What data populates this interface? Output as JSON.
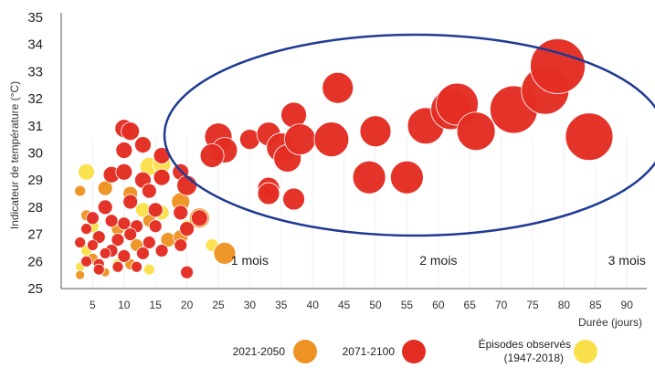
{
  "chart_data": {
    "type": "scatter",
    "xlabel": "Durée (jours)",
    "ylabel": "Indicateur de température (°C)",
    "xlim": [
      0,
      92
    ],
    "ylim": [
      25,
      35
    ],
    "xticks": [
      5,
      10,
      15,
      20,
      25,
      30,
      35,
      40,
      45,
      50,
      55,
      60,
      65,
      70,
      75,
      80,
      85,
      90
    ],
    "yticks": [
      25,
      26,
      27,
      28,
      29,
      30,
      31,
      32,
      33,
      34,
      35
    ],
    "month_markers": [
      {
        "label": "1 mois",
        "x": 30
      },
      {
        "label": "2 mois",
        "x": 60
      },
      {
        "label": "3 mois",
        "x": 90
      }
    ],
    "highlight": "ellipse",
    "legend_placement": "bottom",
    "series": [
      {
        "name": "Épisodes observés (1947-2018)",
        "color": "#f9e04a",
        "points": [
          {
            "x": 4,
            "y": 29.3,
            "r": 9
          },
          {
            "x": 14,
            "y": 29.5,
            "r": 10
          },
          {
            "x": 16,
            "y": 29.6,
            "r": 10
          },
          {
            "x": 16,
            "y": 27.8,
            "r": 8
          },
          {
            "x": 13,
            "y": 27.9,
            "r": 8
          },
          {
            "x": 5,
            "y": 27.3,
            "r": 7
          },
          {
            "x": 6,
            "y": 26.9,
            "r": 6
          },
          {
            "x": 4,
            "y": 26.4,
            "r": 6
          },
          {
            "x": 9,
            "y": 25.9,
            "r": 6
          },
          {
            "x": 14,
            "y": 25.7,
            "r": 6
          },
          {
            "x": 24,
            "y": 26.6,
            "r": 7
          },
          {
            "x": 20,
            "y": 27.3,
            "r": 7
          },
          {
            "x": 3,
            "y": 25.8,
            "r": 5
          }
        ]
      },
      {
        "name": "2021-2050",
        "color": "#ee9323",
        "points": [
          {
            "x": 3,
            "y": 28.6,
            "r": 6
          },
          {
            "x": 7,
            "y": 28.7,
            "r": 8
          },
          {
            "x": 11,
            "y": 28.5,
            "r": 8
          },
          {
            "x": 16,
            "y": 29.1,
            "r": 9
          },
          {
            "x": 19,
            "y": 28.2,
            "r": 10
          },
          {
            "x": 22,
            "y": 27.6,
            "r": 11
          },
          {
            "x": 26,
            "y": 26.3,
            "r": 12
          },
          {
            "x": 4,
            "y": 27.7,
            "r": 6
          },
          {
            "x": 9,
            "y": 27.2,
            "r": 7
          },
          {
            "x": 12,
            "y": 26.6,
            "r": 7
          },
          {
            "x": 17,
            "y": 26.8,
            "r": 8
          },
          {
            "x": 5,
            "y": 26.1,
            "r": 6
          },
          {
            "x": 7,
            "y": 25.6,
            "r": 5
          },
          {
            "x": 3,
            "y": 25.5,
            "r": 5
          },
          {
            "x": 11,
            "y": 25.9,
            "r": 6
          },
          {
            "x": 19,
            "y": 26.9,
            "r": 8
          },
          {
            "x": 14,
            "y": 27.5,
            "r": 7
          }
        ]
      },
      {
        "name": "2071-2100",
        "color": "#e32d23",
        "points": [
          {
            "x": 10,
            "y": 30.9,
            "r": 10
          },
          {
            "x": 11,
            "y": 30.8,
            "r": 10
          },
          {
            "x": 10,
            "y": 30.1,
            "r": 9
          },
          {
            "x": 13,
            "y": 30.3,
            "r": 9
          },
          {
            "x": 8,
            "y": 29.2,
            "r": 9
          },
          {
            "x": 10,
            "y": 29.3,
            "r": 9
          },
          {
            "x": 13,
            "y": 29.0,
            "r": 9
          },
          {
            "x": 16,
            "y": 29.1,
            "r": 9
          },
          {
            "x": 19,
            "y": 29.3,
            "r": 9
          },
          {
            "x": 20,
            "y": 28.8,
            "r": 11
          },
          {
            "x": 16,
            "y": 29.9,
            "r": 9
          },
          {
            "x": 14,
            "y": 28.6,
            "r": 8
          },
          {
            "x": 7,
            "y": 28.0,
            "r": 8
          },
          {
            "x": 11,
            "y": 28.2,
            "r": 8
          },
          {
            "x": 15,
            "y": 27.9,
            "r": 8
          },
          {
            "x": 19,
            "y": 27.8,
            "r": 8
          },
          {
            "x": 20,
            "y": 27.2,
            "r": 8
          },
          {
            "x": 22,
            "y": 27.6,
            "r": 9
          },
          {
            "x": 5,
            "y": 27.6,
            "r": 7
          },
          {
            "x": 8,
            "y": 27.5,
            "r": 7
          },
          {
            "x": 10,
            "y": 27.4,
            "r": 7
          },
          {
            "x": 12,
            "y": 27.3,
            "r": 7
          },
          {
            "x": 15,
            "y": 27.3,
            "r": 7
          },
          {
            "x": 4,
            "y": 27.2,
            "r": 6
          },
          {
            "x": 6,
            "y": 26.9,
            "r": 7
          },
          {
            "x": 9,
            "y": 26.8,
            "r": 7
          },
          {
            "x": 11,
            "y": 27.0,
            "r": 7
          },
          {
            "x": 14,
            "y": 26.7,
            "r": 7
          },
          {
            "x": 5,
            "y": 26.6,
            "r": 6
          },
          {
            "x": 8,
            "y": 26.4,
            "r": 7
          },
          {
            "x": 10,
            "y": 26.2,
            "r": 7
          },
          {
            "x": 13,
            "y": 26.3,
            "r": 7
          },
          {
            "x": 16,
            "y": 26.4,
            "r": 7
          },
          {
            "x": 19,
            "y": 26.6,
            "r": 7
          },
          {
            "x": 4,
            "y": 26.0,
            "r": 6
          },
          {
            "x": 6,
            "y": 25.9,
            "r": 6
          },
          {
            "x": 9,
            "y": 25.8,
            "r": 6
          },
          {
            "x": 12,
            "y": 25.8,
            "r": 6
          },
          {
            "x": 7,
            "y": 26.3,
            "r": 6
          },
          {
            "x": 3,
            "y": 26.7,
            "r": 6
          },
          {
            "x": 6,
            "y": 25.7,
            "r": 6
          },
          {
            "x": 20,
            "y": 25.6,
            "r": 7
          },
          {
            "x": 25,
            "y": 30.6,
            "r": 15
          },
          {
            "x": 26,
            "y": 30.1,
            "r": 14
          },
          {
            "x": 24,
            "y": 29.9,
            "r": 13
          },
          {
            "x": 30,
            "y": 30.5,
            "r": 11
          },
          {
            "x": 33,
            "y": 30.7,
            "r": 13
          },
          {
            "x": 35,
            "y": 30.2,
            "r": 16
          },
          {
            "x": 36,
            "y": 29.8,
            "r": 15
          },
          {
            "x": 37,
            "y": 31.4,
            "r": 14
          },
          {
            "x": 38,
            "y": 30.5,
            "r": 17
          },
          {
            "x": 33,
            "y": 28.7,
            "r": 12
          },
          {
            "x": 33,
            "y": 28.5,
            "r": 12
          },
          {
            "x": 37,
            "y": 28.3,
            "r": 12
          },
          {
            "x": 43,
            "y": 30.5,
            "r": 19
          },
          {
            "x": 44,
            "y": 32.4,
            "r": 17
          },
          {
            "x": 49,
            "y": 29.1,
            "r": 18
          },
          {
            "x": 50,
            "y": 30.8,
            "r": 17
          },
          {
            "x": 55,
            "y": 29.1,
            "r": 18
          },
          {
            "x": 58,
            "y": 31.0,
            "r": 20
          },
          {
            "x": 62,
            "y": 31.6,
            "r": 22
          },
          {
            "x": 63,
            "y": 31.8,
            "r": 23
          },
          {
            "x": 66,
            "y": 30.8,
            "r": 21
          },
          {
            "x": 72,
            "y": 31.6,
            "r": 26
          },
          {
            "x": 77,
            "y": 32.3,
            "r": 26
          },
          {
            "x": 79,
            "y": 33.2,
            "r": 30
          },
          {
            "x": 84,
            "y": 30.6,
            "r": 26
          }
        ]
      }
    ]
  }
}
